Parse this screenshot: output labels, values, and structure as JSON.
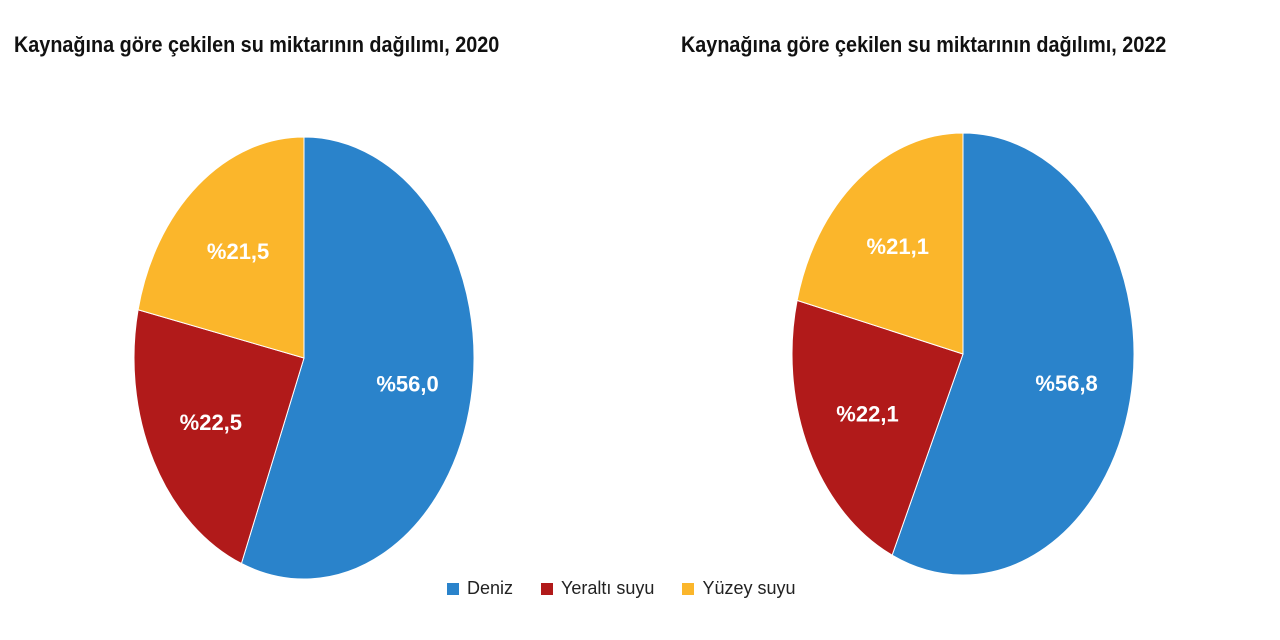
{
  "chart_data": [
    {
      "type": "pie",
      "title": "Kaynağına göre çekilen su miktarının dağılımı, 2020",
      "categories": [
        "Deniz",
        "Yeraltı suyu",
        "Yüzey suyu"
      ],
      "values": [
        56.0,
        22.5,
        21.5
      ],
      "labels": [
        "%56,0",
        "%22,5",
        "%21,5"
      ]
    },
    {
      "type": "pie",
      "title": "Kaynağına göre çekilen su miktarının dağılımı, 2022",
      "categories": [
        "Deniz",
        "Yeraltı suyu",
        "Yüzey suyu"
      ],
      "values": [
        56.8,
        22.1,
        21.1
      ],
      "labels": [
        "%56,8",
        "%22,1",
        "%21,1"
      ]
    }
  ],
  "legend": [
    {
      "label": "Deniz",
      "color": "#2a83cb"
    },
    {
      "label": "Yeraltı suyu",
      "color": "#b11a1a"
    },
    {
      "label": "Yüzey suyu",
      "color": "#fbb62b"
    }
  ]
}
